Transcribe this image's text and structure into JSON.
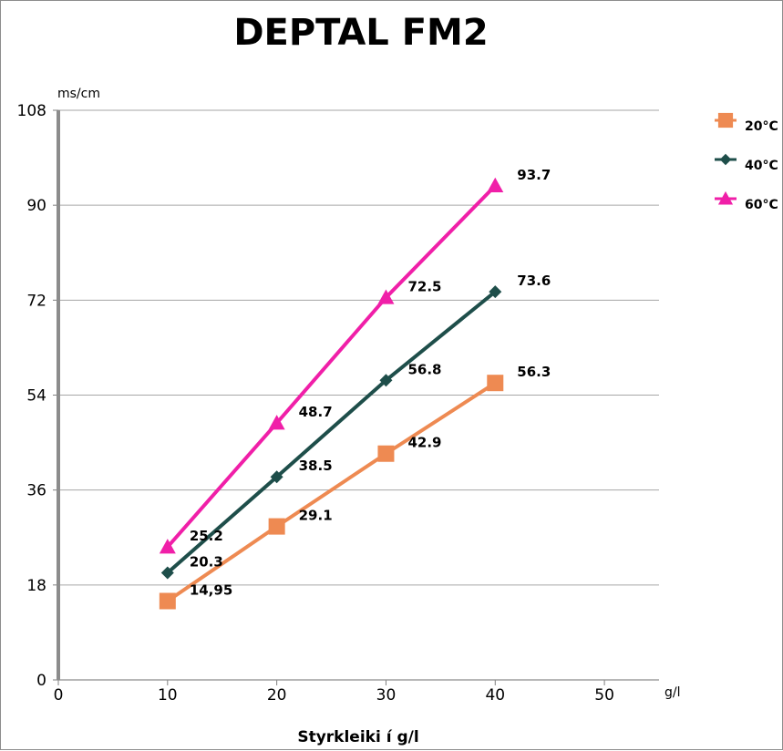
{
  "chart_data": {
    "type": "line",
    "title": "DEPTAL FM2",
    "xlabel": "Styrkleiki í g/l",
    "x_unit": "g/l",
    "y_unit": "ms/cm",
    "xlim": [
      0,
      55
    ],
    "ylim": [
      0,
      108
    ],
    "x_ticks": [
      "0",
      "10",
      "20",
      "30",
      "40",
      "50"
    ],
    "y_ticks": [
      "0",
      "18",
      "36",
      "54",
      "72",
      "90",
      "108"
    ],
    "grid": "horizontal",
    "legend_position": "right",
    "x": [
      10,
      20,
      30,
      40
    ],
    "series": [
      {
        "name": "20°C",
        "color": "#ee8a52",
        "marker": "square",
        "values": [
          14.95,
          29.1,
          42.9,
          56.3
        ],
        "labels": [
          "14,95",
          "29.1",
          "42.9",
          "56.3"
        ]
      },
      {
        "name": "40°C",
        "color": "#1e4e4a",
        "marker": "diamond",
        "values": [
          20.3,
          38.5,
          56.8,
          73.6
        ],
        "labels": [
          "20.3",
          "38.5",
          "56.8",
          "73.6"
        ]
      },
      {
        "name": "60°C",
        "color": "#f01fa8",
        "marker": "triangle",
        "values": [
          25.2,
          48.7,
          72.5,
          93.7
        ],
        "labels": [
          "25.2",
          "48.7",
          "72.5",
          "93.7"
        ]
      }
    ]
  }
}
